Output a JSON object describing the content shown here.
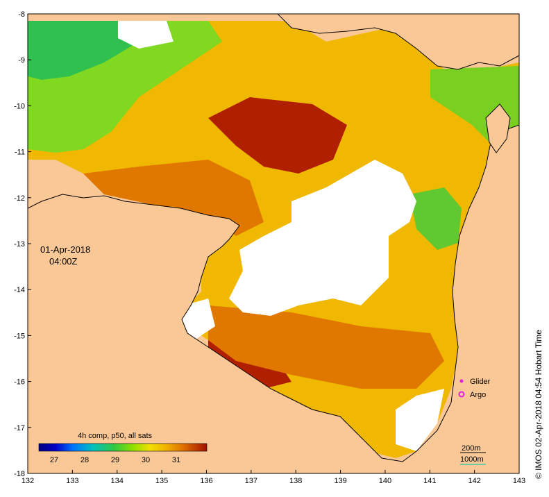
{
  "date_label": "01-Apr-2018",
  "time_label": "04:00Z",
  "credit": "© IMOS 02-Apr-2018 04:54 Hobart Time",
  "colorbar": {
    "title": "4h comp, p50, all sats",
    "ticks": [
      "27",
      "28",
      "29",
      "30",
      "31"
    ],
    "range": [
      26.5,
      32
    ]
  },
  "legend": {
    "glider": {
      "label": "Glider",
      "color": "#e020e0"
    },
    "argo": {
      "label": "Argo",
      "color": "#e020e0"
    }
  },
  "contours": {
    "c200": {
      "label": "200m",
      "color": "#000000"
    },
    "c1000": {
      "label": "1000m",
      "color": "#40c8a0"
    }
  },
  "axes": {
    "x_ticks": [
      "132",
      "133",
      "134",
      "135",
      "136",
      "137",
      "138",
      "139",
      "140",
      "141",
      "142",
      "143"
    ],
    "y_ticks": [
      "-8",
      "-9",
      "-10",
      "-11",
      "-12",
      "-13",
      "-14",
      "-15",
      "-16",
      "-17",
      "-18"
    ],
    "xlim": [
      132,
      143
    ],
    "ylim": [
      -18,
      -8
    ]
  },
  "colors": {
    "land": "#fac896",
    "no_data": "#ffffff",
    "sst_hot": "#a01000",
    "sst_warm": "#e08000",
    "sst_mid": "#f0c000",
    "sst_cool": "#70d000",
    "sst_cold": "#10c080"
  }
}
